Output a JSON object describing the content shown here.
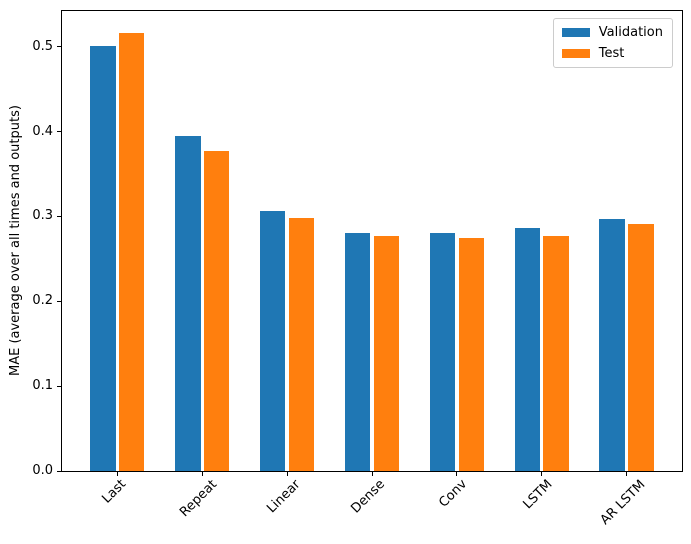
{
  "chart_data": {
    "type": "bar",
    "title": "",
    "categories": [
      "Last",
      "Repeat",
      "Linear",
      "Dense",
      "Conv",
      "LSTM",
      "AR LSTM"
    ],
    "series": [
      {
        "name": "Validation",
        "color": "#1f77b4",
        "values": [
          0.501,
          0.395,
          0.306,
          0.28,
          0.28,
          0.286,
          0.297
        ]
      },
      {
        "name": "Test",
        "color": "#ff7f0e",
        "values": [
          0.516,
          0.377,
          0.298,
          0.277,
          0.274,
          0.277,
          0.291
        ]
      }
    ],
    "xlabel": "",
    "ylabel": "MAE (average over all times and outputs)",
    "ylim": [
      0,
      0.542
    ],
    "xlim": [
      -0.652,
      6.652
    ],
    "yticks": [
      0.0,
      0.1,
      0.2,
      0.3,
      0.4,
      0.5
    ],
    "ytick_labels": [
      "0.0",
      "0.1",
      "0.2",
      "0.3",
      "0.4",
      "0.5"
    ],
    "bar_width": 0.3,
    "bar_offset": 0.17,
    "x_tick_rotation": 45,
    "legend_position": "upper right",
    "grid": false
  }
}
